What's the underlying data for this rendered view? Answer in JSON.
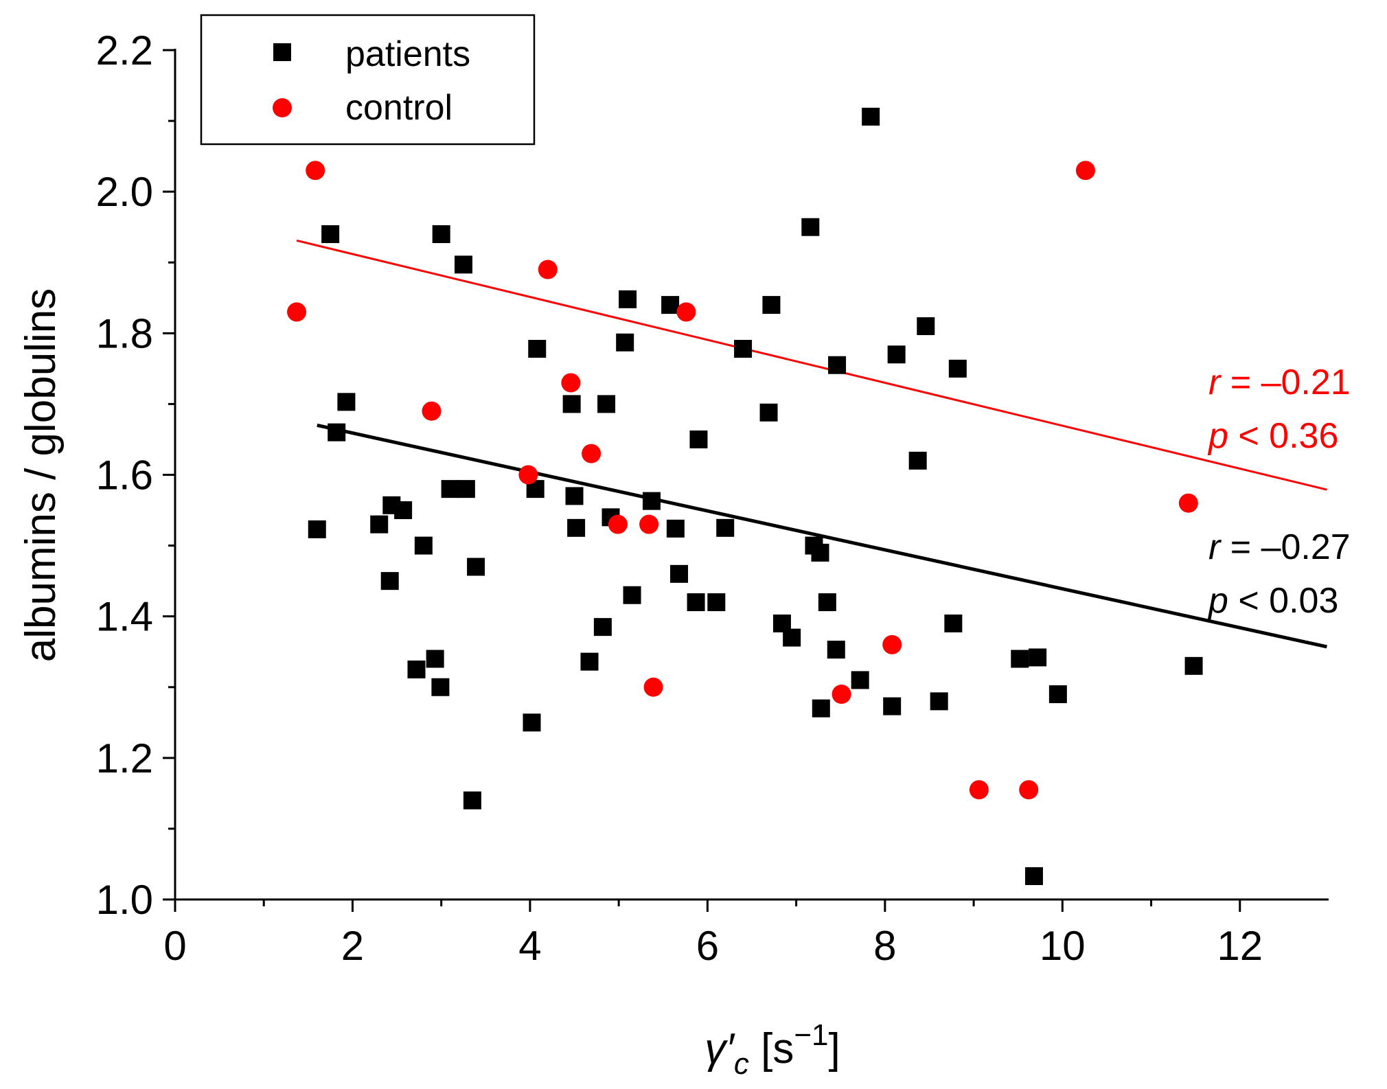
{
  "chart_data": {
    "type": "scatter",
    "title": "",
    "xlabel": {
      "symbol": "γ′",
      "subscript": "c",
      "unit_open": " [s",
      "unit_sup": "−1",
      "unit_close": "]"
    },
    "ylabel": "albumins / globulins",
    "xlim": [
      0,
      13
    ],
    "ylim": [
      1.0,
      2.2
    ],
    "x_ticks": [
      0,
      2,
      4,
      6,
      8,
      10,
      12
    ],
    "x_tick_labels": [
      "0",
      "2",
      "4",
      "6",
      "8",
      "10",
      "12"
    ],
    "y_ticks": [
      1.0,
      1.2,
      1.4,
      1.6,
      1.8,
      2.0,
      2.2
    ],
    "y_tick_labels": [
      "1.0",
      "1.2",
      "1.4",
      "1.6",
      "1.8",
      "2.0",
      "2.2"
    ],
    "grid": false,
    "legend_position": "top-left",
    "series": [
      {
        "name": "patients",
        "marker": "square",
        "color": "#000000",
        "points": [
          [
            1.6,
            1.523
          ],
          [
            1.75,
            1.94
          ],
          [
            1.82,
            1.66
          ],
          [
            1.93,
            1.703
          ],
          [
            2.3,
            1.53
          ],
          [
            2.42,
            1.45
          ],
          [
            2.44,
            1.557
          ],
          [
            2.57,
            1.55
          ],
          [
            2.72,
            1.325
          ],
          [
            2.8,
            1.5
          ],
          [
            2.93,
            1.34
          ],
          [
            2.99,
            1.3
          ],
          [
            3.0,
            1.94
          ],
          [
            3.1,
            1.58
          ],
          [
            3.25,
            1.897
          ],
          [
            3.28,
            1.58
          ],
          [
            3.35,
            1.14
          ],
          [
            3.39,
            1.47
          ],
          [
            4.02,
            1.25
          ],
          [
            4.06,
            1.58
          ],
          [
            4.08,
            1.778
          ],
          [
            4.47,
            1.7
          ],
          [
            4.5,
            1.57
          ],
          [
            4.52,
            1.525
          ],
          [
            4.67,
            1.336
          ],
          [
            4.82,
            1.385
          ],
          [
            4.86,
            1.7
          ],
          [
            4.91,
            1.54
          ],
          [
            5.07,
            1.787
          ],
          [
            5.1,
            1.848
          ],
          [
            5.15,
            1.43
          ],
          [
            5.37,
            1.563
          ],
          [
            5.58,
            1.84
          ],
          [
            5.64,
            1.524
          ],
          [
            5.68,
            1.46
          ],
          [
            5.87,
            1.42
          ],
          [
            5.9,
            1.65
          ],
          [
            6.1,
            1.42
          ],
          [
            6.2,
            1.525
          ],
          [
            6.4,
            1.778
          ],
          [
            6.69,
            1.688
          ],
          [
            6.72,
            1.84
          ],
          [
            6.84,
            1.39
          ],
          [
            6.95,
            1.37
          ],
          [
            7.16,
            1.95
          ],
          [
            7.2,
            1.5
          ],
          [
            7.27,
            1.49
          ],
          [
            7.28,
            1.27
          ],
          [
            7.35,
            1.42
          ],
          [
            7.45,
            1.353
          ],
          [
            7.46,
            1.755
          ],
          [
            7.72,
            1.31
          ],
          [
            7.84,
            2.106
          ],
          [
            8.08,
            1.273
          ],
          [
            8.13,
            1.77
          ],
          [
            8.37,
            1.62
          ],
          [
            8.46,
            1.81
          ],
          [
            8.61,
            1.28
          ],
          [
            8.77,
            1.39
          ],
          [
            8.82,
            1.75
          ],
          [
            9.52,
            1.34
          ],
          [
            9.68,
            1.033
          ],
          [
            9.72,
            1.342
          ],
          [
            9.95,
            1.29
          ],
          [
            11.48,
            1.33
          ]
        ]
      },
      {
        "name": "control",
        "marker": "circle",
        "color": "#ff0000",
        "points": [
          [
            1.37,
            1.83
          ],
          [
            1.58,
            2.03
          ],
          [
            2.89,
            1.69
          ],
          [
            3.98,
            1.6
          ],
          [
            4.2,
            1.89
          ],
          [
            4.46,
            1.73
          ],
          [
            4.69,
            1.63
          ],
          [
            4.99,
            1.53
          ],
          [
            5.34,
            1.53
          ],
          [
            5.39,
            1.3
          ],
          [
            5.76,
            1.83
          ],
          [
            7.51,
            1.29
          ],
          [
            8.08,
            1.36
          ],
          [
            9.06,
            1.155
          ],
          [
            9.62,
            1.155
          ],
          [
            10.26,
            2.03
          ],
          [
            11.42,
            1.56
          ]
        ]
      }
    ],
    "fit_lines": [
      {
        "series": "control",
        "color": "#ff0000",
        "x": [
          1.37,
          12.98
        ],
        "y": [
          1.931,
          1.579
        ]
      },
      {
        "series": "patients",
        "color": "#000000",
        "x": [
          1.6,
          12.98
        ],
        "y": [
          1.67,
          1.357
        ]
      }
    ],
    "annotations": [
      {
        "series": "control",
        "color": "#ff0000",
        "r_sym": "r",
        "r_text": " = –0.21",
        "p_sym": "p",
        "p_text": " < 0.36"
      },
      {
        "series": "patients",
        "color": "#000000",
        "r_sym": "r",
        "r_text": " = –0.27",
        "p_sym": "p",
        "p_text": " < 0.03"
      }
    ]
  }
}
